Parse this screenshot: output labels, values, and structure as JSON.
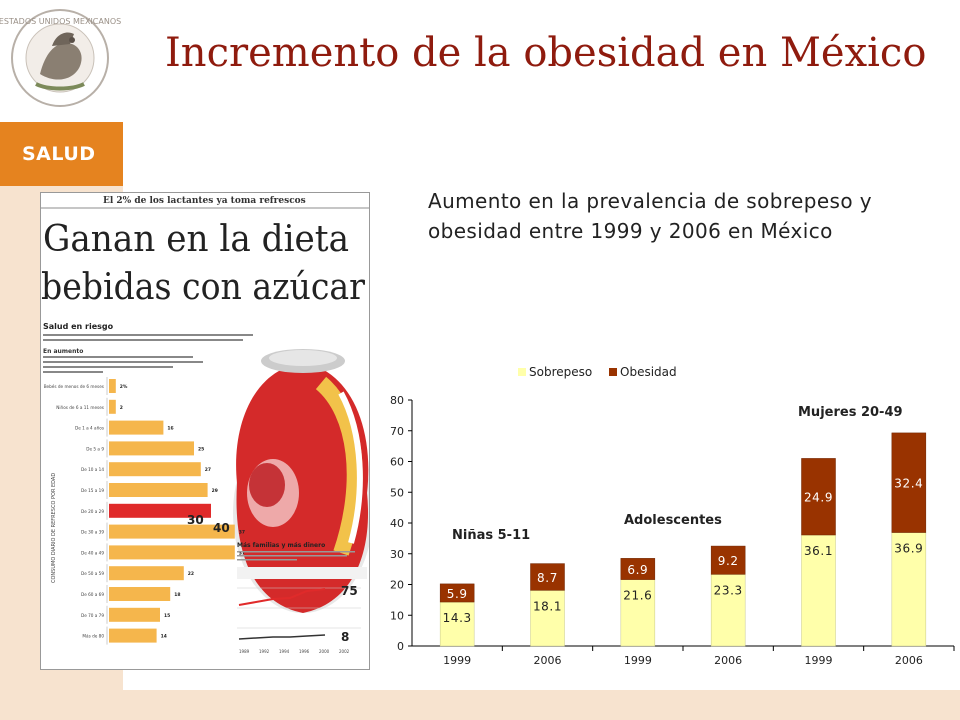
{
  "header": {
    "title": "Incremento de la obesidad en México",
    "brand_label": "SALUD",
    "seal_text": "ESTADOS UNIDOS MEXICANOS"
  },
  "subtitle": "Aumento en la prevalencia de sobrepeso y obesidad entre 1999 y 2006 en México",
  "newspaper": {
    "kicker": "El 2% de los lactantes ya toma refrescos",
    "headline_line1": "Ganan en la dieta",
    "headline_line2": "bebidas con azúcar",
    "section": "Salud en riesgo",
    "section2": "En aumento",
    "side_label": "CONSUMO DIARIO DE REFRESCO POR EDAD",
    "bar_labels": [
      "Bebés de menos de 6 meses",
      "Niños de 6 a 11 meses",
      "De 1 a 4 años",
      "De 5 a 9",
      "De 10 a 14",
      "De 15 a 19",
      "De 20 a 29",
      "De 30 a 39",
      "De 40 a 49",
      "De 50 a 59",
      "De 60 a 69",
      "De 70 a 79",
      "Más de 80"
    ],
    "bar_values": [
      "2%",
      "2",
      "16",
      "25",
      "27",
      "29",
      "30",
      "37",
      "37",
      "22",
      "18",
      "15",
      "14"
    ],
    "big_value_a": "30",
    "big_value_b": "40",
    "inset_title": "Más familias y más dinero",
    "inset_value_top": "75",
    "inset_value_bottom": "8",
    "inset_years": [
      "1989",
      "1992",
      "1994",
      "1996",
      "2000",
      "2002"
    ]
  },
  "colors": {
    "orange": "#e5831f",
    "title": "#8f1b0e",
    "sobrepeso": "#ffffaa",
    "obesidad": "#993300",
    "sidebar": "#f7e3cf"
  },
  "chart_data": {
    "type": "bar",
    "stacked": true,
    "categories": [
      "1999",
      "2006",
      "1999",
      "2006",
      "1999",
      "2006"
    ],
    "series": [
      {
        "name": "Sobrepeso",
        "values": [
          14.3,
          18.1,
          21.6,
          23.3,
          36.1,
          36.9
        ],
        "labels": [
          "14.3",
          "18.1",
          "21.6",
          "23.3",
          "36.1",
          "36.9"
        ]
      },
      {
        "name": "Obesidad",
        "values": [
          5.9,
          8.7,
          6.9,
          9.2,
          24.9,
          32.4
        ],
        "labels": [
          "5.9",
          "8.7",
          "6.9",
          "9.2",
          "24.9",
          "32.4"
        ]
      }
    ],
    "group_labels": [
      "Niñas 5-11",
      "Adolescentes",
      "Mujeres 20-49"
    ],
    "ylim": [
      0,
      80
    ],
    "yticks": [
      "0",
      "10",
      "20",
      "30",
      "40",
      "50",
      "60",
      "70",
      "80"
    ],
    "legend_position": "top",
    "grid": false
  }
}
